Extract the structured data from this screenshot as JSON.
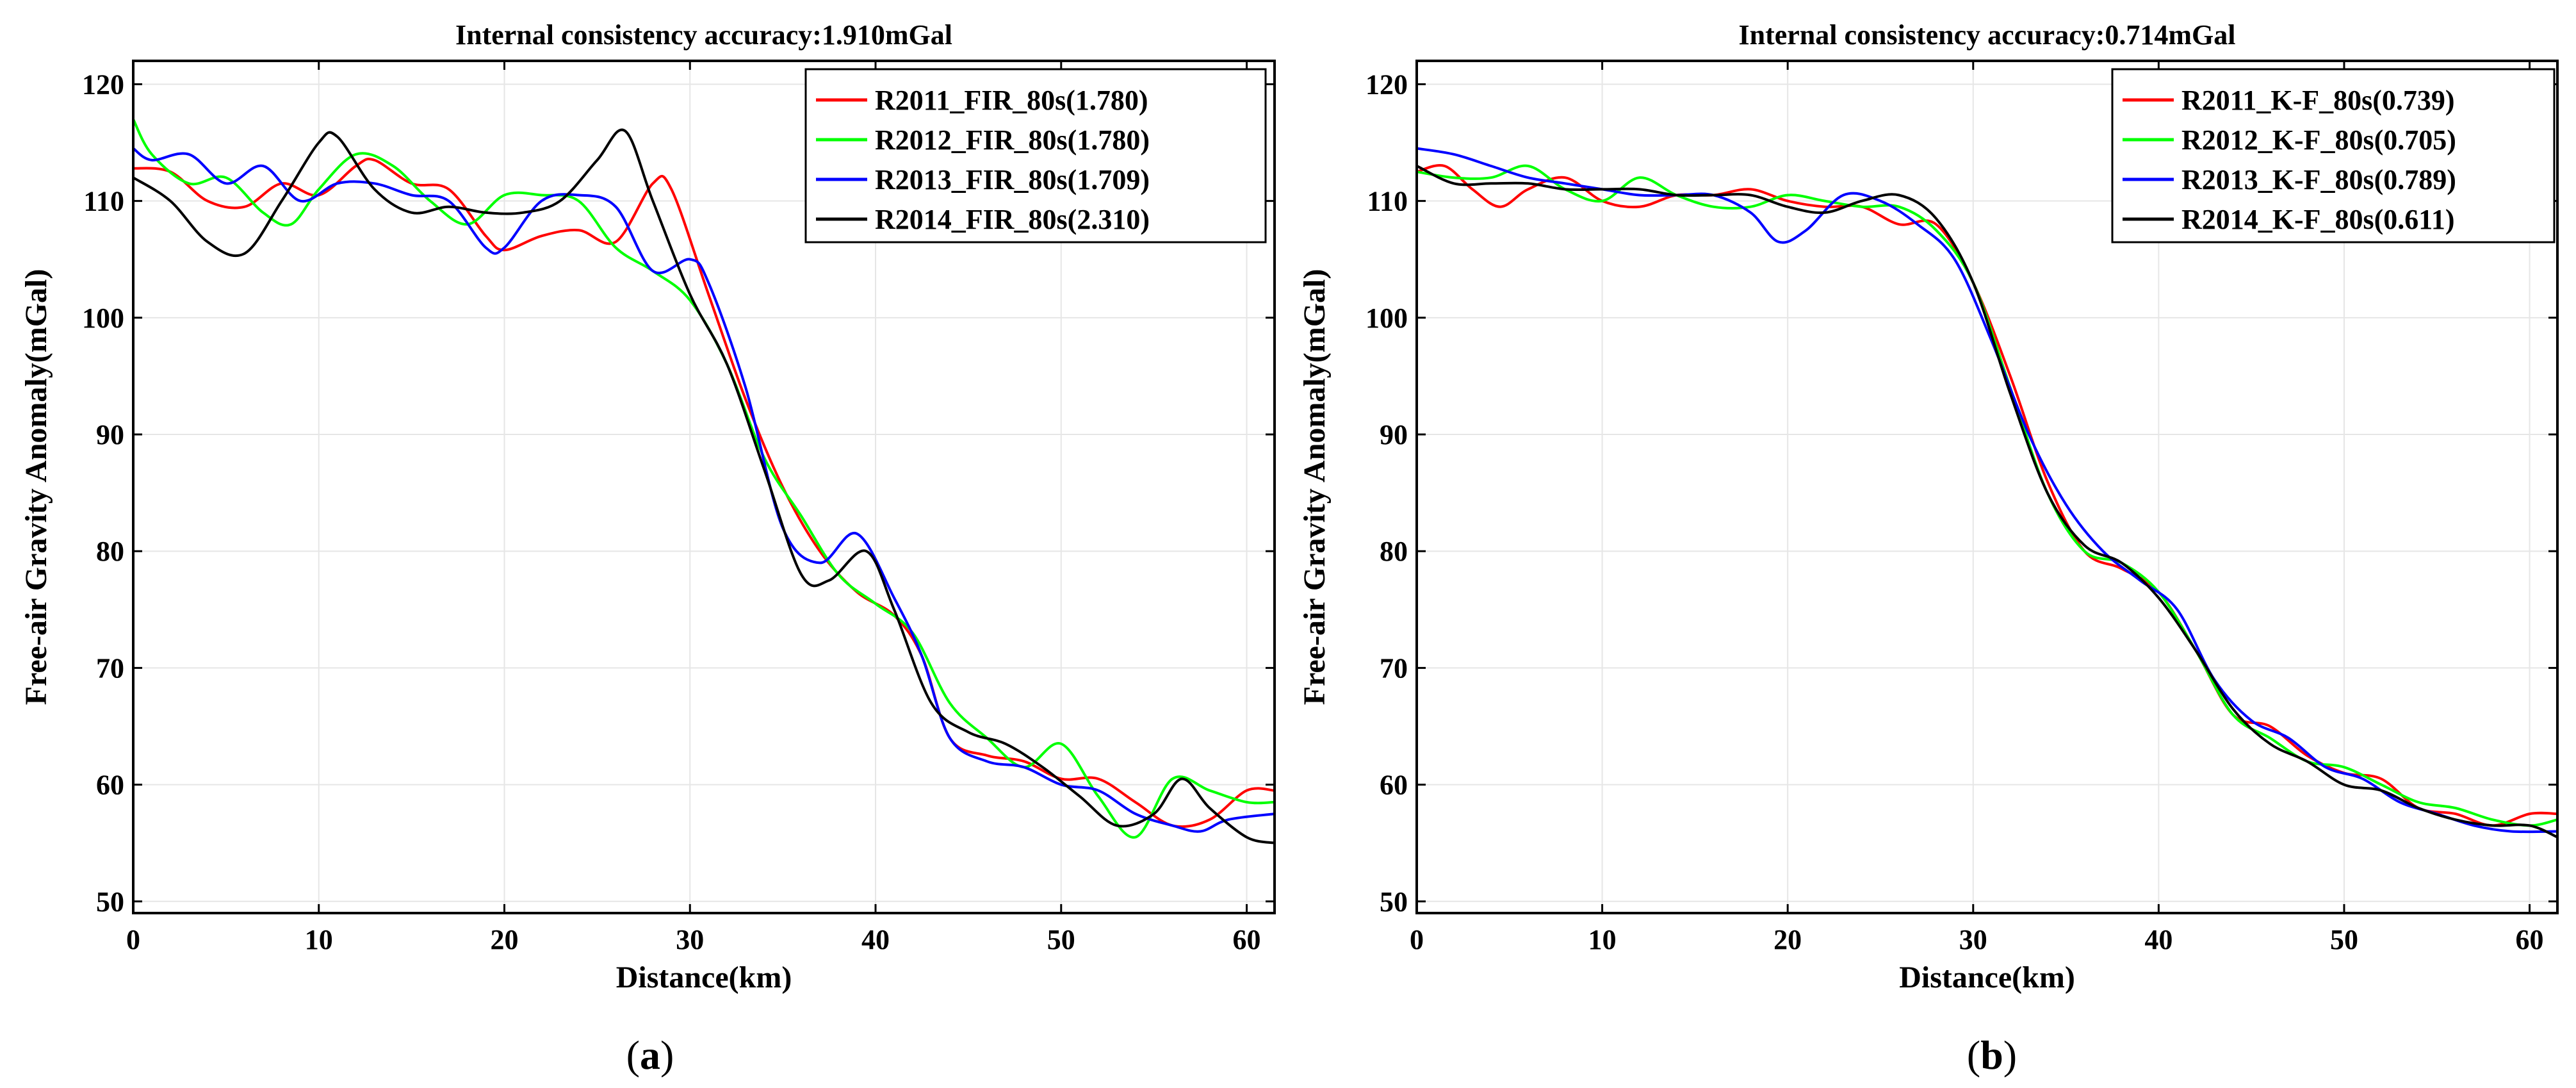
{
  "chart_data": [
    {
      "type": "line",
      "title": "Internal consistency accuracy:1.910mGal",
      "xlabel": "Distance(km)",
      "ylabel": "Free-air Gravity Anomaly(mGal)",
      "xlim": [
        0,
        61.5
      ],
      "ylim": [
        49,
        122
      ],
      "xticks": [
        0,
        10,
        20,
        30,
        40,
        50,
        60
      ],
      "yticks": [
        50,
        60,
        70,
        80,
        90,
        100,
        110,
        120
      ],
      "grid": true,
      "legend": "top-right",
      "caption_letter": "a",
      "series": [
        {
          "name": "R2011_FIR_80s(1.780)",
          "color": "#ff0000",
          "x": [
            0,
            2,
            4,
            6,
            8,
            10,
            12,
            13,
            15,
            17,
            19,
            20,
            22,
            24,
            26,
            28,
            29,
            31,
            33,
            35,
            37,
            39,
            41,
            42.5,
            44,
            46,
            48,
            50,
            52,
            54,
            56,
            58,
            60,
            61.5
          ],
          "y": [
            112.8,
            112.5,
            110,
            109.5,
            111.5,
            110.5,
            113,
            113.5,
            111.5,
            111,
            107,
            105.8,
            107,
            107.5,
            106.5,
            111.5,
            111,
            102,
            93,
            85.5,
            80,
            76.5,
            74.5,
            71,
            64,
            62.5,
            62,
            60.5,
            60.5,
            58.5,
            56.5,
            57,
            59.5,
            59.5
          ]
        },
        {
          "name": "R2012_FIR_80s(1.780)",
          "color": "#00ff00",
          "x": [
            0,
            1,
            3,
            5,
            7,
            8.5,
            10,
            12,
            14,
            16,
            18,
            20,
            22,
            24,
            26,
            28,
            30,
            32,
            34,
            36,
            38,
            40,
            42,
            44,
            46,
            48,
            50,
            52,
            54,
            56,
            58,
            60,
            61.5
          ],
          "y": [
            117,
            114,
            111.5,
            112,
            109,
            108,
            111,
            114,
            113,
            110,
            108,
            110.5,
            110.5,
            110,
            106,
            104,
            101.5,
            96,
            88,
            83,
            78,
            75.5,
            73,
            67,
            64,
            61.5,
            63.5,
            59,
            55.5,
            60.5,
            59.5,
            58.5,
            58.5
          ]
        },
        {
          "name": "R2013_FIR_80s(1.709)",
          "color": "#0000ff",
          "x": [
            0,
            1,
            3,
            5,
            7,
            9,
            11,
            13,
            15,
            17,
            19,
            20,
            22,
            24,
            26,
            28,
            30,
            31,
            33,
            35,
            37,
            39,
            41,
            42.5,
            44,
            46,
            48,
            50,
            52,
            54,
            56,
            57.5,
            59,
            61.5
          ],
          "y": [
            114.5,
            113.5,
            114,
            111.5,
            113,
            110,
            111.5,
            111.5,
            110.5,
            110,
            106,
            106,
            110,
            110.5,
            109.5,
            104,
            105,
            103,
            94,
            82,
            79,
            81.5,
            76,
            71,
            64,
            62,
            61.5,
            60,
            59.5,
            57.5,
            56.5,
            56,
            57,
            57.5
          ]
        },
        {
          "name": "R2014_FIR_80s(2.310)",
          "color": "#000000",
          "x": [
            0,
            2,
            4,
            6,
            8,
            10,
            11,
            13,
            15,
            17,
            19,
            21,
            23,
            25,
            26.5,
            28,
            30,
            32,
            34,
            36,
            37.5,
            39.5,
            41,
            43,
            45,
            47,
            49,
            51,
            53,
            55,
            56.5,
            58,
            60,
            61.5
          ],
          "y": [
            112,
            110,
            106.5,
            105.5,
            110,
            115,
            115.5,
            111,
            109,
            109.5,
            109,
            109,
            110,
            113.5,
            116,
            110,
            102,
            96,
            87,
            78,
            77.5,
            80,
            75,
            67,
            64.5,
            63.5,
            61.5,
            59,
            56.5,
            57.5,
            60.5,
            58,
            55.5,
            55
          ]
        }
      ]
    },
    {
      "type": "line",
      "title": "Internal consistency accuracy:0.714mGal",
      "xlabel": "Distance(km)",
      "ylabel": "Free-air Gravity Anomaly(mGal)",
      "xlim": [
        0,
        61.5
      ],
      "ylim": [
        49,
        122
      ],
      "xticks": [
        0,
        10,
        20,
        30,
        40,
        50,
        60
      ],
      "yticks": [
        50,
        60,
        70,
        80,
        90,
        100,
        110,
        120
      ],
      "grid": true,
      "legend": "top-right",
      "caption_letter": "b",
      "series": [
        {
          "name": "R2011_K-F_80s(0.739)",
          "color": "#ff0000",
          "x": [
            0,
            1.5,
            3,
            4.5,
            6,
            8,
            10,
            12,
            14,
            16,
            18,
            20,
            22,
            24,
            26,
            28,
            30,
            32,
            34,
            36,
            38,
            40,
            42,
            44,
            46,
            48,
            50,
            52,
            54,
            56,
            58,
            60,
            61.5
          ],
          "y": [
            112.5,
            113,
            111,
            109.5,
            111,
            112,
            110,
            109.5,
            110.5,
            110.5,
            111,
            110,
            109.5,
            109.5,
            108,
            108,
            103,
            95,
            86,
            80,
            78.5,
            76.5,
            71.5,
            66,
            65,
            62.5,
            61,
            60.5,
            58,
            57.5,
            56.5,
            57.5,
            57.5
          ]
        },
        {
          "name": "R2012_K-F_80s(0.705)",
          "color": "#00ff00",
          "x": [
            0,
            2,
            4,
            6,
            8,
            10,
            12,
            14,
            16,
            18,
            20,
            22,
            24,
            26,
            28,
            30,
            32,
            34,
            36,
            38,
            40,
            42,
            44,
            46,
            48,
            50,
            52,
            54,
            56,
            58,
            60,
            61.5
          ],
          "y": [
            112.5,
            112,
            112,
            113,
            111,
            110,
            112,
            110.5,
            109.5,
            109.5,
            110.5,
            110,
            109.5,
            109.5,
            107.5,
            103,
            94,
            85,
            80,
            79,
            76.5,
            71.5,
            66,
            64,
            62,
            61.5,
            60,
            58.5,
            58,
            57,
            56.5,
            57
          ]
        },
        {
          "name": "R2013_K-F_80s(0.789)",
          "color": "#0000ff",
          "x": [
            0,
            2,
            4,
            6,
            8,
            10,
            12,
            14,
            16,
            18,
            19.5,
            21,
            23,
            25,
            27,
            29,
            31,
            33,
            35,
            37,
            39,
            41,
            43,
            45,
            47,
            49,
            51,
            53,
            55,
            57,
            59,
            61.5
          ],
          "y": [
            114.5,
            114,
            113,
            112,
            111.5,
            111,
            110.5,
            110.5,
            110.5,
            109,
            106.5,
            107.5,
            110.5,
            110,
            108,
            105,
            98,
            90,
            84,
            80,
            77.5,
            75,
            69,
            65.5,
            64,
            61.5,
            60.5,
            58.5,
            57.5,
            56.5,
            56,
            56
          ]
        },
        {
          "name": "R2014_K-F_80s(0.611)",
          "color": "#000000",
          "x": [
            0,
            2,
            4,
            6,
            8,
            10,
            12,
            14,
            16,
            18,
            20,
            22,
            24,
            26,
            28,
            30,
            32,
            34,
            36,
            38,
            40,
            42,
            44,
            46,
            48,
            50,
            52,
            54,
            56,
            58,
            60,
            61.5
          ],
          "y": [
            113,
            111.5,
            111.5,
            111.5,
            111,
            111,
            111,
            110.5,
            110.5,
            110.5,
            109.5,
            109,
            110,
            110.5,
            108.5,
            103,
            93.5,
            85,
            80.5,
            79,
            76,
            71.5,
            66.5,
            63.5,
            62,
            60,
            59.5,
            58,
            57,
            56.5,
            56.5,
            55.5
          ]
        }
      ]
    }
  ]
}
